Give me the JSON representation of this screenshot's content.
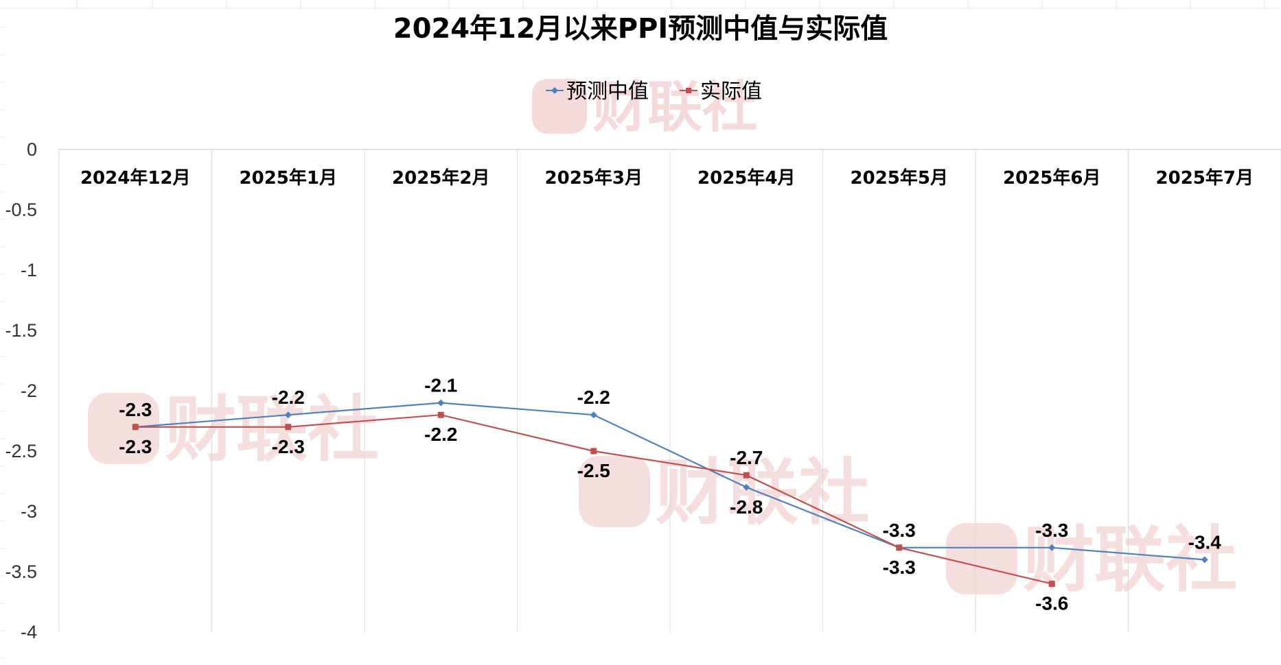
{
  "chart_data": {
    "type": "line",
    "title": "2024年12月以来PPI预测中值与实际值",
    "xlabel": "",
    "ylabel": "",
    "categories": [
      "2024年12月",
      "2025年1月",
      "2025年2月",
      "2025年3月",
      "2025年4月",
      "2025年5月",
      "2025年6月",
      "2025年7月"
    ],
    "ylim": [
      -4,
      0
    ],
    "yticks": [
      0,
      -0.5,
      -1,
      -1.5,
      -2,
      -2.5,
      -3,
      -3.5,
      -4
    ],
    "ytick_labels": [
      "0",
      "-0.5",
      "-1",
      "-1.5",
      "-2",
      "-2.5",
      "-3",
      "-3.5",
      "-4"
    ],
    "x_axis_position": "top",
    "grid": "vertical",
    "legend_position": "top",
    "series": [
      {
        "name": "预测中值",
        "color": "#4f81bd",
        "marker": "diamond",
        "values": [
          -2.3,
          -2.2,
          -2.1,
          -2.2,
          -2.8,
          -3.3,
          -3.3,
          -3.4
        ],
        "labels": [
          "-2.3",
          "-2.2",
          "-2.1",
          "-2.2",
          "-2.8",
          "-3.3",
          "-3.3",
          "-3.4"
        ]
      },
      {
        "name": "实际值",
        "color": "#c0504d",
        "marker": "square",
        "values": [
          -2.3,
          -2.3,
          -2.2,
          -2.5,
          -2.7,
          -3.3,
          -3.6,
          null
        ],
        "labels": [
          "-2.3",
          "-2.3",
          "-2.2",
          "-2.5",
          "-2.7",
          "-3.3",
          "-3.6",
          ""
        ]
      }
    ]
  },
  "watermark": {
    "text": "财联社",
    "color": "#f3d6d6"
  }
}
